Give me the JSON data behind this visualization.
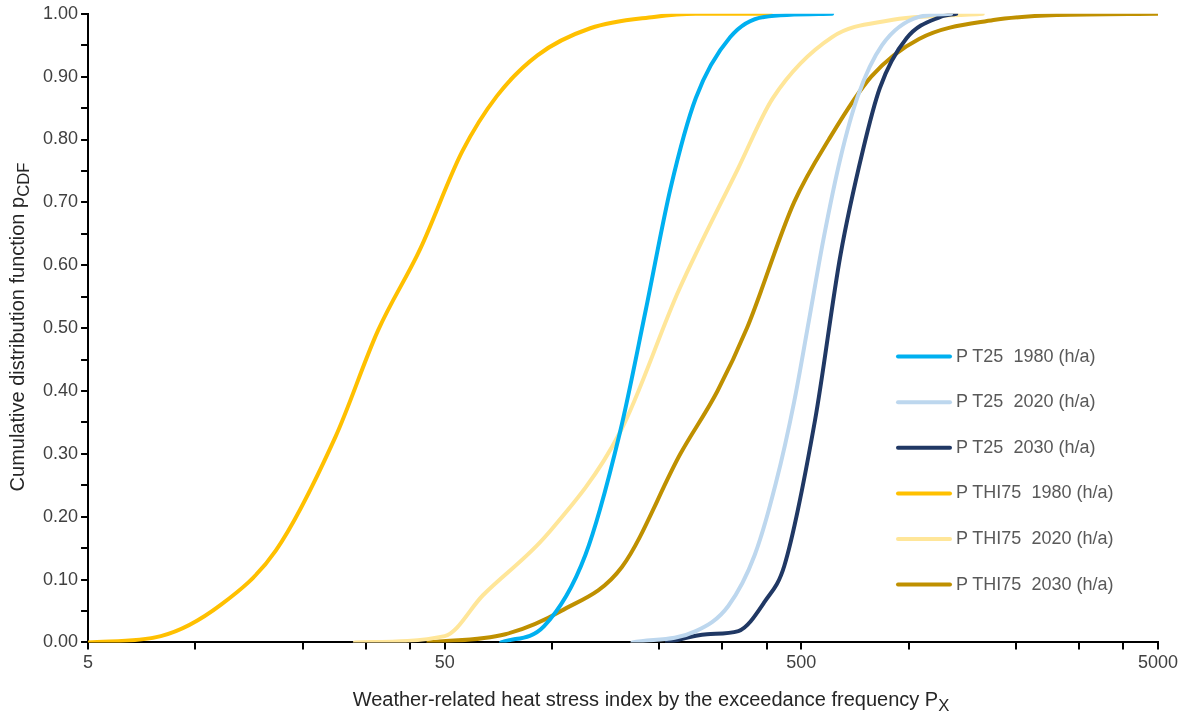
{
  "chart_data": {
    "type": "line",
    "xlabel": "Weather-related heat stress index by the exceedance frequency P$_{X}$",
    "ylabel": "Cumulative distribution function p$_{CDF}$",
    "log": "x",
    "xlim": [
      5,
      5000
    ],
    "ylim": [
      0,
      1
    ],
    "xticks": [
      5,
      {
        "value": 10,
        "label": null
      },
      {
        "value": 20,
        "label": null
      },
      {
        "value": 30,
        "label": null
      },
      {
        "value": 40,
        "label": null
      },
      50,
      {
        "value": 100,
        "label": null
      },
      {
        "value": 200,
        "label": null
      },
      {
        "value": 300,
        "label": null
      },
      {
        "value": 400,
        "label": null
      },
      500,
      {
        "value": 1000,
        "label": null
      },
      {
        "value": 2000,
        "label": null
      },
      {
        "value": 3000,
        "label": null
      },
      {
        "value": 4000,
        "label": null
      },
      5000
    ],
    "yticks": [
      {
        "value": 0,
        "label": "0.00"
      },
      {
        "value": 0.05,
        "label": null
      },
      {
        "value": 0.1,
        "label": "0.10"
      },
      {
        "value": 0.15,
        "label": null
      },
      {
        "value": 0.2,
        "label": "0.20"
      },
      {
        "value": 0.25,
        "label": null
      },
      {
        "value": 0.3,
        "label": "0.30"
      },
      {
        "value": 0.35,
        "label": null
      },
      {
        "value": 0.4,
        "label": "0.40"
      },
      {
        "value": 0.45,
        "label": null
      },
      {
        "value": 0.5,
        "label": "0.50"
      },
      {
        "value": 0.55,
        "label": null
      },
      {
        "value": 0.6,
        "label": "0.60"
      },
      {
        "value": 0.65,
        "label": null
      },
      {
        "value": 0.7,
        "label": "0.70"
      },
      {
        "value": 0.75,
        "label": null
      },
      {
        "value": 0.8,
        "label": "0.80"
      },
      {
        "value": 0.85,
        "label": null
      },
      {
        "value": 0.9,
        "label": "0.90"
      },
      {
        "value": 0.95,
        "label": null
      },
      {
        "value": 1,
        "label": "1.00"
      }
    ],
    "grid": false,
    "legend": "bottom right",
    "marker": "none",
    "line_style": "solid",
    "series": [
      {
        "name": "P T25  1980 (h/a)",
        "color": "#00b0f0",
        "x": [
          72,
          95,
          124,
          155,
          183,
          215,
          253,
          316,
          393,
          610
        ],
        "values": [
          0,
          0.026,
          0.139,
          0.334,
          0.528,
          0.723,
          0.866,
          0.963,
          0.995,
          1
        ]
      },
      {
        "name": "P T25  2020 (h/a)",
        "color": "#bdd7ee",
        "x": [
          168,
          253,
          312,
          370,
          424,
          477,
          525,
          577,
          644,
          720,
          842,
          1069,
          1315
        ],
        "values": [
          0,
          0.018,
          0.058,
          0.139,
          0.253,
          0.382,
          0.512,
          0.642,
          0.771,
          0.869,
          0.95,
          0.995,
          1
        ]
      },
      {
        "name": "P T25  2030 (h/a)",
        "color": "#203864",
        "x": [
          210,
          272,
          333,
          396,
          448,
          546,
          644,
          744,
          830,
          986,
          1227,
          1359
        ],
        "values": [
          0,
          0.013,
          0.018,
          0.066,
          0.122,
          0.353,
          0.617,
          0.783,
          0.882,
          0.961,
          0.995,
          1
        ]
      },
      {
        "name": "P THI75  1980 (h/a)",
        "color": "#ffc000",
        "x": [
          5,
          8,
          11.8,
          16.8,
          24.7,
          32.5,
          42.7,
          56,
          70,
          91,
          128,
          193,
          253,
          410
        ],
        "values": [
          0,
          0.01,
          0.06,
          0.146,
          0.327,
          0.496,
          0.626,
          0.781,
          0.869,
          0.934,
          0.977,
          0.995,
          1,
          1
        ]
      },
      {
        "name": "P THI75  2020 (h/a)",
        "color": "#ffe699",
        "x": [
          28,
          50,
          64,
          97,
          155,
          227,
          333,
          416,
          610,
          871,
          1613
        ],
        "values": [
          0,
          0.01,
          0.075,
          0.172,
          0.334,
          0.561,
          0.755,
          0.866,
          0.963,
          0.989,
          1
        ]
      },
      {
        "name": "P THI75  2030 (h/a)",
        "color": "#bf9000",
        "x": [
          45,
          74,
          106,
          157,
          229,
          291,
          352,
          477,
          597,
          785,
          1069,
          1729,
          2606,
          5000
        ],
        "values": [
          0,
          0.013,
          0.05,
          0.12,
          0.3,
          0.4,
          0.5,
          0.7,
          0.8,
          0.9,
          0.96,
          0.99,
          0.998,
          1
        ]
      }
    ]
  }
}
